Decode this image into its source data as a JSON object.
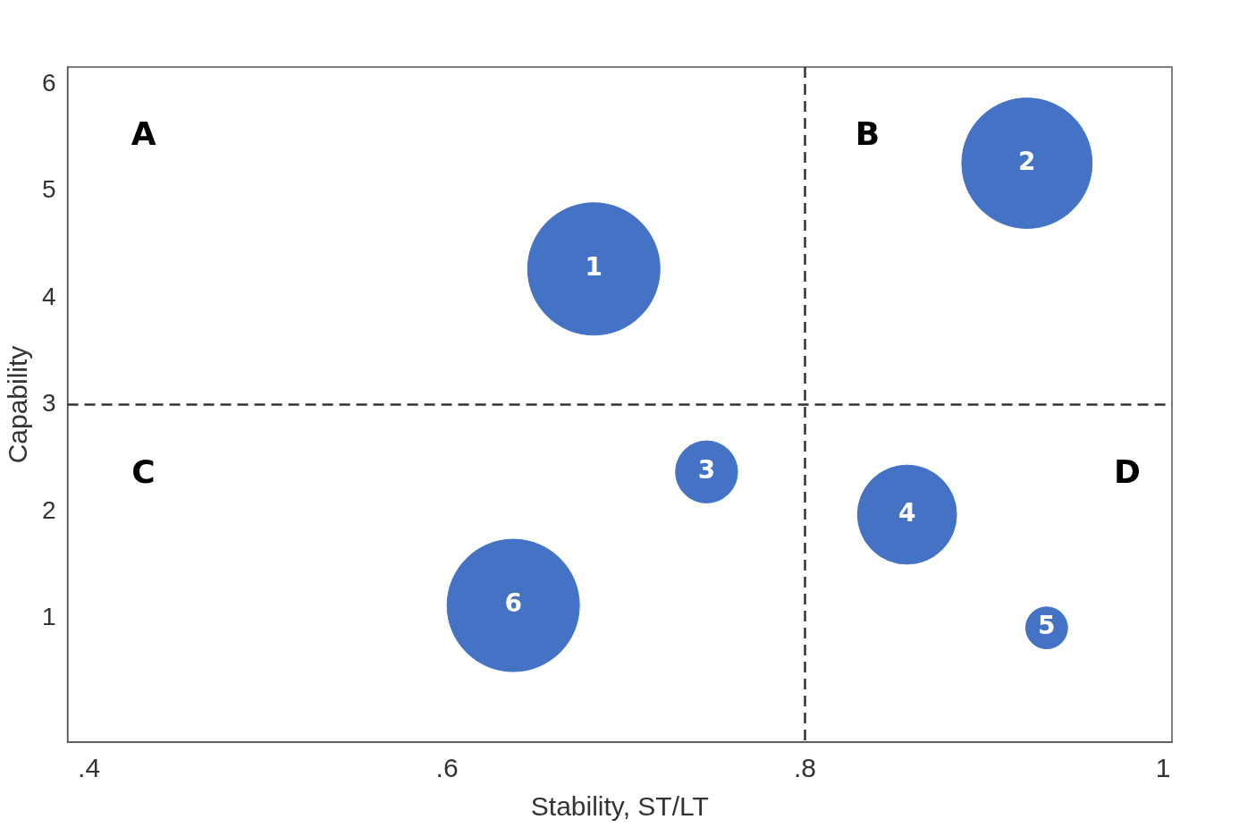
{
  "chart_data": {
    "type": "bubble",
    "xlabel": "Stability, ST/LT",
    "ylabel": "Capability",
    "xlim": [
      0.388,
      1.005
    ],
    "xticks": [
      {
        "value": 0.4,
        "label": ".4"
      },
      {
        "value": 0.6,
        "label": ".6"
      },
      {
        "value": 0.8,
        "label": ".8"
      },
      1
    ],
    "ylim": [
      -0.16,
      6.16
    ],
    "yticks": [
      1,
      2,
      3,
      4,
      5,
      6
    ],
    "grid": false,
    "legend": false,
    "series": [
      {
        "name": "1",
        "color": "#4472c4",
        "x": [
          0.682
        ],
        "values": [
          4.27
        ],
        "sizes": [
          1
        ]
      },
      {
        "name": "2",
        "color": "#4472c4",
        "x": [
          0.924
        ],
        "values": [
          5.26
        ],
        "sizes": [
          0.97
        ]
      },
      {
        "name": "3",
        "color": "#4472c4",
        "x": [
          0.745
        ],
        "values": [
          2.37
        ],
        "sizes": [
          0.22
        ]
      },
      {
        "name": "4",
        "color": "#4472c4",
        "x": [
          0.857
        ],
        "values": [
          1.97
        ],
        "sizes": [
          0.56
        ]
      },
      {
        "name": "5",
        "color": "#4472c4",
        "x": [
          0.935
        ],
        "values": [
          0.91
        ],
        "sizes": [
          0.1
        ]
      },
      {
        "name": "6",
        "color": "#4472c4",
        "x": [
          0.637
        ],
        "values": [
          1.12
        ],
        "sizes": [
          1
        ]
      }
    ],
    "ref_lines": [
      {
        "axis": "x",
        "value": 0.8,
        "line_style": "dashed",
        "color": "#333333"
      },
      {
        "axis": "y",
        "value": 3,
        "line_style": "dashed",
        "color": "#333333"
      }
    ],
    "annotations": [
      "A",
      "B",
      "C",
      "D"
    ]
  }
}
